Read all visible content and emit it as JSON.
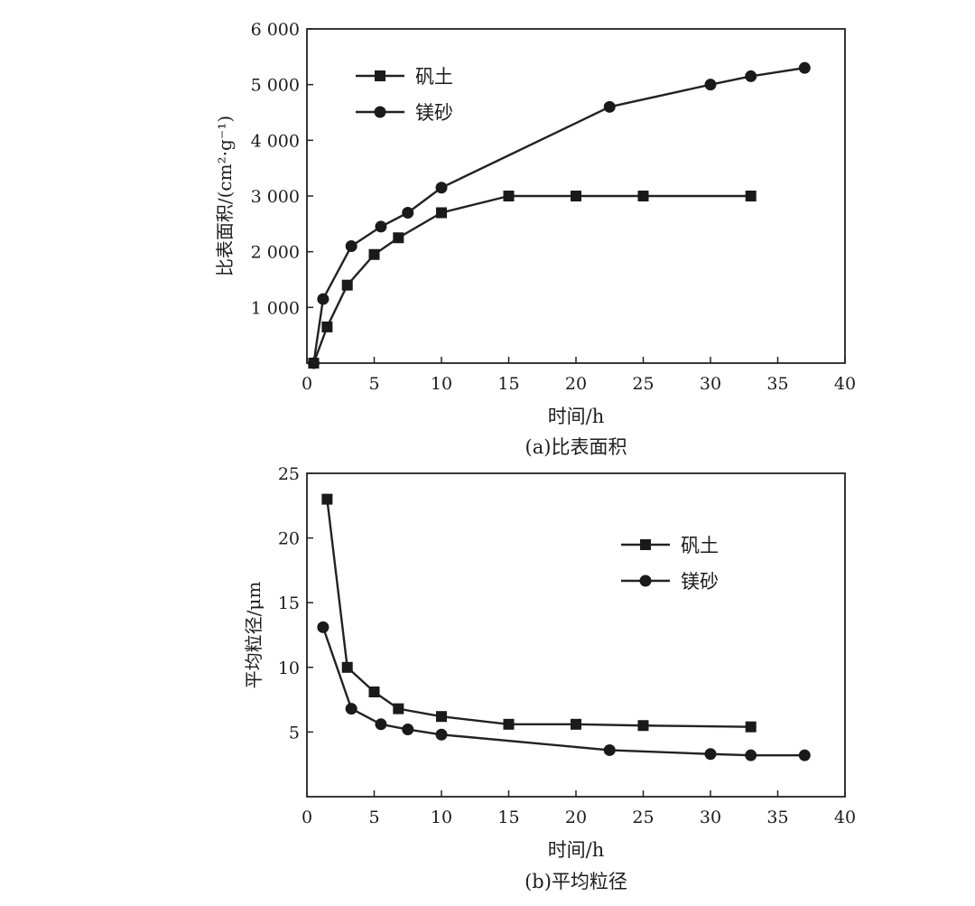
{
  "chart_data": [
    {
      "type": "line",
      "caption": "(a)比表面积",
      "xlabel": "时间/h",
      "ylabel": "比表面积/(cm²·g⁻¹)",
      "xlim": [
        0,
        40
      ],
      "ylim": [
        0,
        6000
      ],
      "xticks": [
        0,
        5,
        10,
        15,
        20,
        25,
        30,
        35,
        40
      ],
      "xtick_labels": [
        "0",
        "5",
        "10",
        "15",
        "20",
        "25",
        "30",
        "35",
        "40"
      ],
      "yticks": [
        1000,
        2000,
        3000,
        4000,
        5000,
        6000
      ],
      "ytick_labels": [
        "1 000",
        "2 000",
        "3 000",
        "4 000",
        "5 000",
        "6 000"
      ],
      "grid": false,
      "legend_position": "top-left",
      "series": [
        {
          "name": "矾土",
          "marker": "square",
          "x": [
            0.5,
            1.5,
            3,
            5,
            6.8,
            10,
            15,
            20,
            25,
            33
          ],
          "y": [
            0,
            650,
            1400,
            1950,
            2250,
            2700,
            3000,
            3000,
            3000,
            3000
          ]
        },
        {
          "name": "镁砂",
          "marker": "circle",
          "x": [
            0.5,
            1.2,
            3.3,
            5.5,
            7.5,
            10,
            22.5,
            30,
            33,
            37
          ],
          "y": [
            0,
            1150,
            2100,
            2450,
            2700,
            3150,
            4600,
            5000,
            5150,
            5300
          ]
        }
      ]
    },
    {
      "type": "line",
      "caption": "(b)平均粒径",
      "xlabel": "时间/h",
      "ylabel": "平均粒径/μm",
      "xlim": [
        0,
        40
      ],
      "ylim": [
        0,
        25
      ],
      "xticks": [
        0,
        5,
        10,
        15,
        20,
        25,
        30,
        35,
        40
      ],
      "xtick_labels": [
        "0",
        "5",
        "10",
        "15",
        "20",
        "25",
        "30",
        "35",
        "40"
      ],
      "yticks": [
        5,
        10,
        15,
        20,
        25
      ],
      "ytick_labels": [
        "5",
        "10",
        "15",
        "20",
        "25"
      ],
      "grid": false,
      "legend_position": "upper-right",
      "series": [
        {
          "name": "矾土",
          "marker": "square",
          "x": [
            1.5,
            3,
            5,
            6.8,
            10,
            15,
            20,
            25,
            33
          ],
          "y": [
            23,
            10,
            8.1,
            6.8,
            6.2,
            5.6,
            5.6,
            5.5,
            5.4
          ]
        },
        {
          "name": "镁砂",
          "marker": "circle",
          "x": [
            1.2,
            3.3,
            5.5,
            7.5,
            10,
            22.5,
            30,
            33,
            37
          ],
          "y": [
            13.1,
            6.8,
            5.6,
            5.2,
            4.8,
            3.6,
            3.3,
            3.2,
            3.2
          ]
        }
      ]
    }
  ]
}
